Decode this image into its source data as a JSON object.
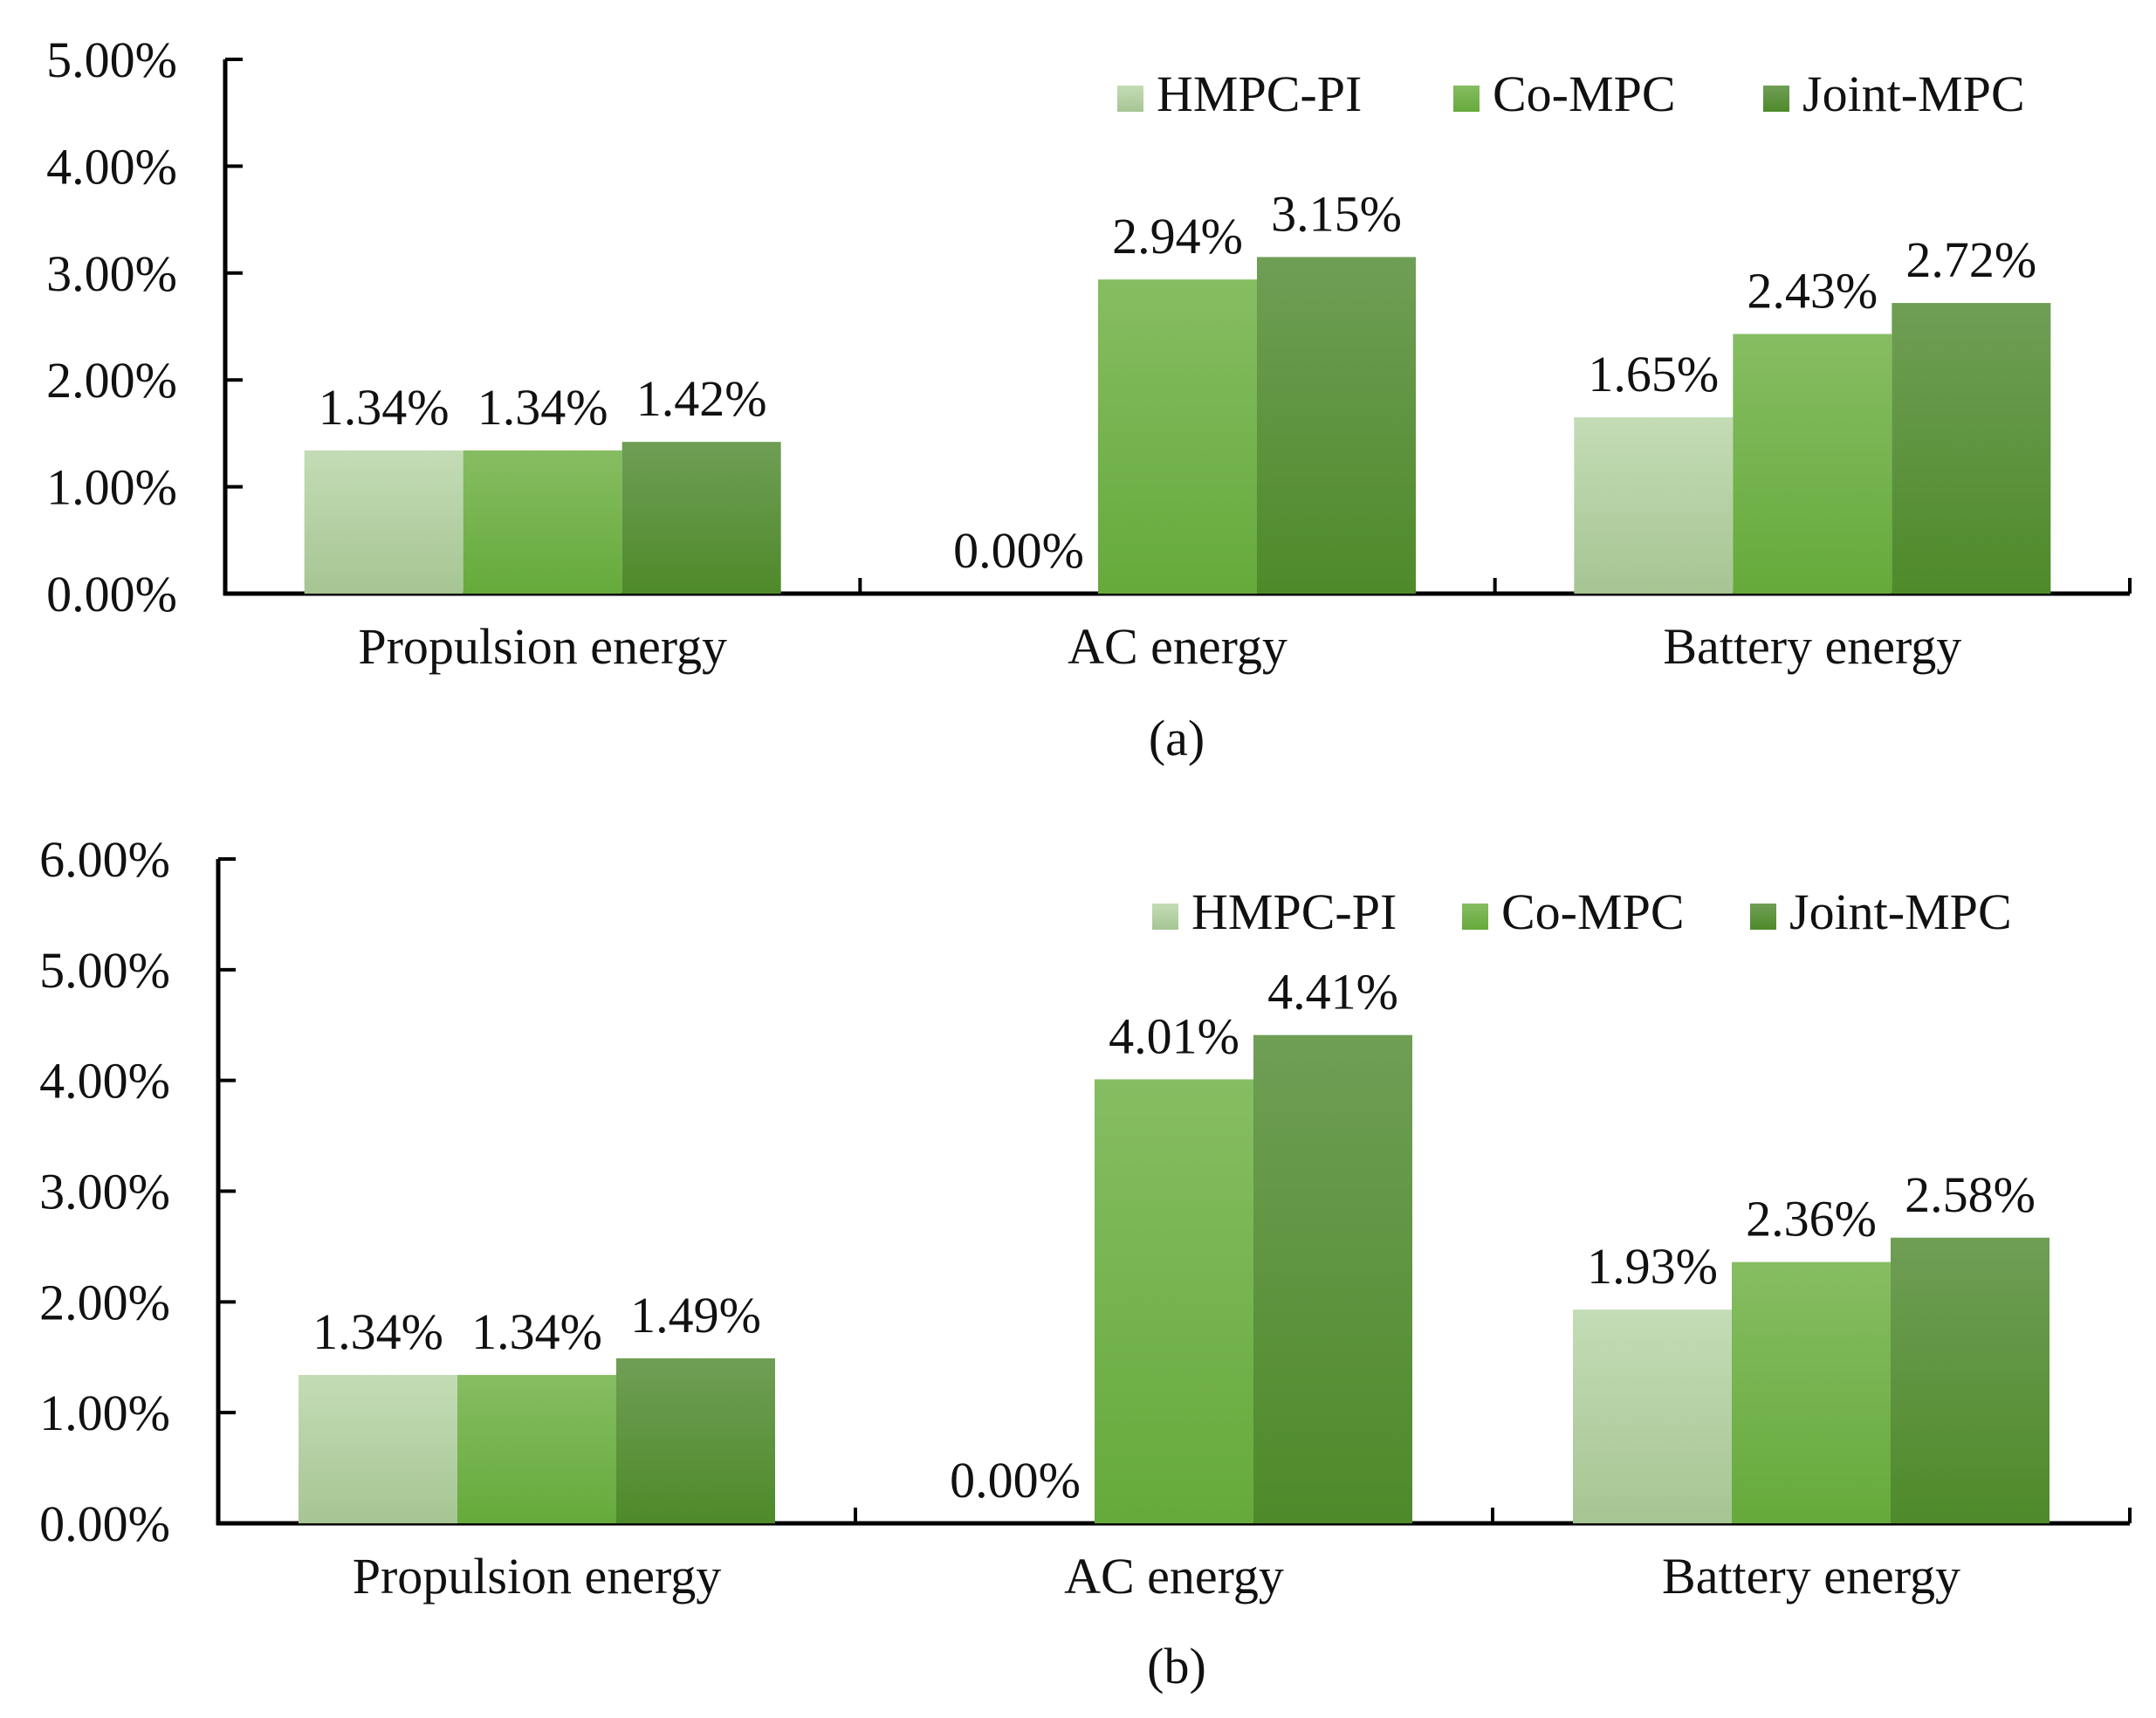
{
  "chart_data": [
    {
      "type": "bar",
      "caption": "(a)",
      "categories": [
        "Propulsion energy",
        "AC energy",
        "Battery energy"
      ],
      "series": [
        {
          "name": "HMPC-PI",
          "values": [
            1.34,
            0.0,
            1.65
          ]
        },
        {
          "name": "Co-MPC",
          "values": [
            1.34,
            2.94,
            2.43
          ]
        },
        {
          "name": "Joint-MPC",
          "values": [
            1.42,
            3.15,
            2.72
          ]
        }
      ],
      "data_labels": [
        [
          "1.34%",
          "0.00%",
          "1.65%"
        ],
        [
          "1.34%",
          "2.94%",
          "2.43%"
        ],
        [
          "1.42%",
          "3.15%",
          "2.72%"
        ]
      ],
      "yticks": [
        0,
        1,
        2,
        3,
        4,
        5
      ],
      "ytick_labels": [
        "0.00%",
        "1.00%",
        "2.00%",
        "3.00%",
        "4.00%",
        "5.00%"
      ],
      "ylim": [
        0,
        5
      ],
      "xlabel": "",
      "ylabel": "",
      "legend": "top-right",
      "grid": false
    },
    {
      "type": "bar",
      "caption": "(b)",
      "categories": [
        "Propulsion energy",
        "AC energy",
        "Battery energy"
      ],
      "series": [
        {
          "name": "HMPC-PI",
          "values": [
            1.34,
            0.0,
            1.93
          ]
        },
        {
          "name": "Co-MPC",
          "values": [
            1.34,
            4.01,
            2.36
          ]
        },
        {
          "name": "Joint-MPC",
          "values": [
            1.49,
            4.41,
            2.58
          ]
        }
      ],
      "data_labels": [
        [
          "1.34%",
          "0.00%",
          "1.93%"
        ],
        [
          "1.34%",
          "4.01%",
          "2.36%"
        ],
        [
          "1.49%",
          "4.41%",
          "2.58%"
        ]
      ],
      "yticks": [
        0,
        1,
        2,
        3,
        4,
        5,
        6
      ],
      "ytick_labels": [
        "0.00%",
        "1.00%",
        "2.00%",
        "3.00%",
        "4.00%",
        "5.00%",
        "6.00%"
      ],
      "ylim": [
        0,
        6
      ],
      "xlabel": "",
      "ylabel": "",
      "legend": "top-right",
      "grid": false
    }
  ],
  "colors": {
    "HMPC-PI": [
      "#c4dcb6",
      "#a6c593"
    ],
    "Co-MPC": [
      "#86bd62",
      "#66aa3b"
    ],
    "Joint-MPC": [
      "#6f9e55",
      "#4e8a2a"
    ],
    "axis": "#000000"
  }
}
